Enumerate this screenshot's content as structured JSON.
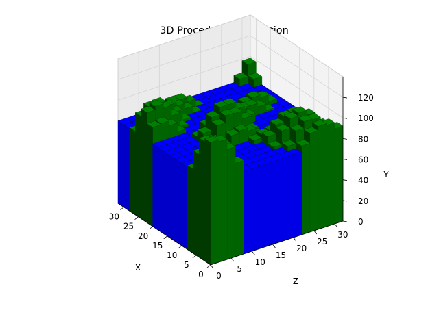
{
  "chart_data": {
    "type": "voxel-3d",
    "title": "3D Procedural Generation",
    "xlabel": "X",
    "ylabel": "Y",
    "zlabel": "Z",
    "x_ticks": [
      "0",
      "5",
      "10",
      "15",
      "20",
      "25",
      "30"
    ],
    "y_ticks": [
      "0",
      "20",
      "40",
      "60",
      "80",
      "100",
      "120"
    ],
    "z_ticks": [
      "0",
      "5",
      "10",
      "15",
      "20",
      "25",
      "30"
    ],
    "x_range": [
      0,
      32
    ],
    "y_range": [
      0,
      128
    ],
    "z_range": [
      0,
      32
    ],
    "grid": true,
    "colors": {
      "water": "#0000ff",
      "land": "#008000",
      "land_dark": "#003a00"
    }
  }
}
